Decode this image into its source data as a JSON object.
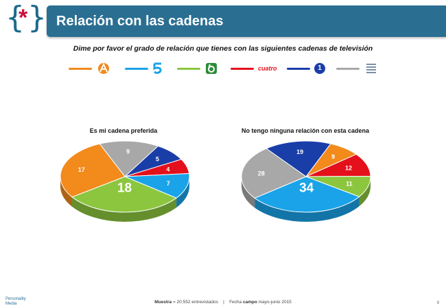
{
  "header": {
    "title": "Relación con las cadenas"
  },
  "question": "Dime por favor el grado de relación que tienes con las siguientes cadenas de televisión",
  "legend": [
    {
      "channel": "Antena 3",
      "color": "#f28a1c",
      "icon": "antena3-logo-icon"
    },
    {
      "channel": "Telecinco",
      "color": "#1aa3e8",
      "icon": "telecinco-logo-icon"
    },
    {
      "channel": "laSexta",
      "color": "#8cc63f",
      "icon": "lasexta-logo-icon"
    },
    {
      "channel": "Cuatro",
      "color": "#e4101b",
      "icon": "cuatro-logo-icon",
      "text": "cuatro"
    },
    {
      "channel": "La 1",
      "color": "#1a3ea8",
      "icon": "la1-logo-icon",
      "text": "1"
    },
    {
      "channel": "Otras",
      "color": "#a8a8a8",
      "icon": "otras-logo-icon"
    }
  ],
  "chart_data": [
    {
      "type": "pie",
      "title": "Es mi cadena preferida",
      "slices": [
        {
          "value": 9,
          "color": "#a8a8a8"
        },
        {
          "value": 5,
          "color": "#1a3ea8"
        },
        {
          "value": 4,
          "color": "#e4101b"
        },
        {
          "value": 7,
          "color": "#1aa3e8"
        },
        {
          "value": 18,
          "color": "#8cc63f"
        },
        {
          "value": 17,
          "color": "#f28a1c"
        }
      ]
    },
    {
      "type": "pie",
      "title": "No tengo ninguna relación con esta cadena",
      "slices": [
        {
          "value": 19,
          "color": "#1a3ea8"
        },
        {
          "value": 9,
          "color": "#f28a1c"
        },
        {
          "value": 12,
          "color": "#e4101b"
        },
        {
          "value": 11,
          "color": "#8cc63f"
        },
        {
          "value": 34,
          "color": "#1aa3e8"
        },
        {
          "value": 28,
          "color": "#a8a8a8"
        }
      ]
    }
  ],
  "footer": {
    "sample_label": "Muestra",
    "sample_value": "= 20.552 entrevistados",
    "separator": "|",
    "date_prefix": "Fecha",
    "date_label": "campo",
    "date_value": "mayo-junio 2015",
    "brand_line1": "Personality",
    "brand_line2": "Media",
    "page": "9"
  }
}
